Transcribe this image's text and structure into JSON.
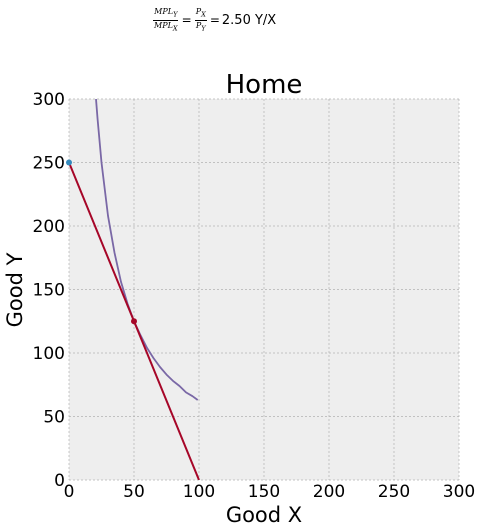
{
  "equation": {
    "left_num": "MPL",
    "left_num_sub": "Y",
    "left_den": "MPL",
    "left_den_sub": "X",
    "right_num": "P",
    "right_num_sub": "X",
    "right_den": "P",
    "right_den_sub": "Y",
    "equals": "=",
    "value_text": "2.50 Y/X"
  },
  "chart_data": {
    "type": "line",
    "title": "Home",
    "xlabel": "Good X",
    "ylabel": "Good Y",
    "xlim": [
      0,
      300
    ],
    "ylim": [
      0,
      300
    ],
    "xticks": [
      0,
      50,
      100,
      150,
      200,
      250,
      300
    ],
    "yticks": [
      0,
      50,
      100,
      150,
      200,
      250,
      300
    ],
    "grid": true,
    "background": "#eeeeee",
    "series": [
      {
        "kind": "indifference-curve",
        "color": "#7a68a6",
        "x": [
          20.8,
          22,
          25,
          30,
          35,
          40,
          45,
          50,
          55,
          60,
          65,
          70,
          75,
          80,
          85,
          90,
          95,
          99
        ],
        "y": [
          300,
          284,
          250,
          208,
          179,
          156,
          139,
          125,
          114,
          104,
          96,
          89,
          83,
          78,
          74,
          69,
          66,
          63
        ]
      },
      {
        "kind": "budget-line",
        "color": "#a60628",
        "x": [
          0,
          100
        ],
        "y": [
          250,
          0
        ]
      }
    ],
    "points": [
      {
        "x": 50,
        "y": 125,
        "color": "#a60628"
      },
      {
        "x": 0,
        "y": 250,
        "color": "#348abd"
      }
    ]
  }
}
